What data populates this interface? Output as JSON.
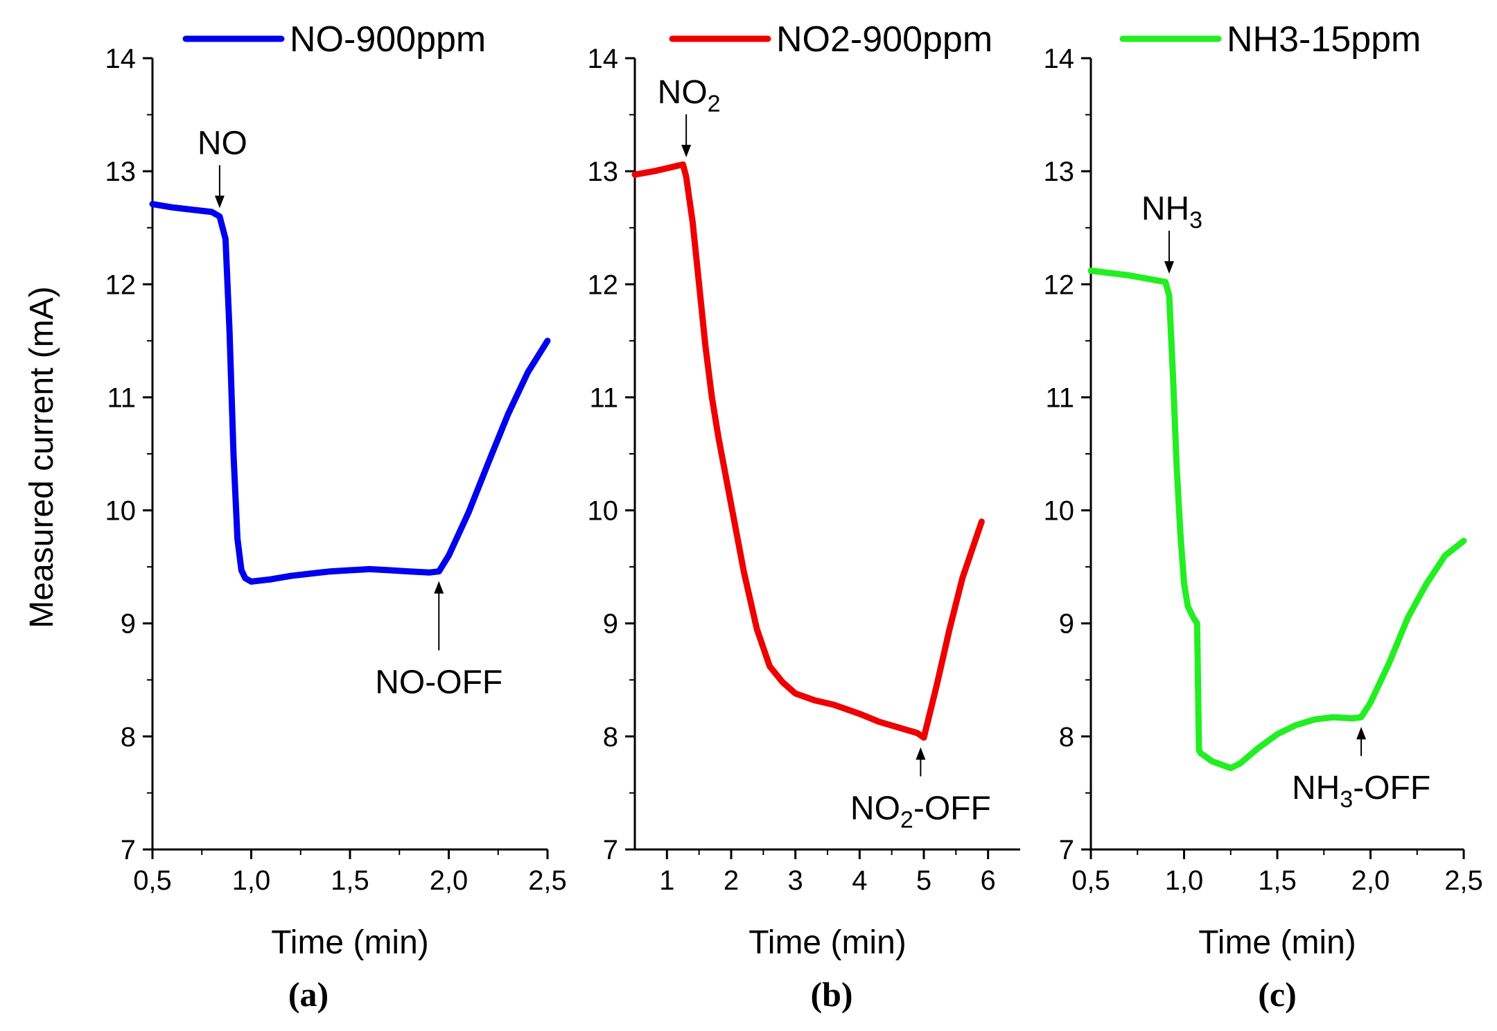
{
  "chart_data": [
    {
      "panel_label": "(a)",
      "type": "line",
      "xlabel": "Time (min)",
      "ylabel": "Measured current (mA)",
      "xlim": [
        0.5,
        2.5
      ],
      "ylim": [
        7,
        14
      ],
      "xticks": [
        0.5,
        1.0,
        1.5,
        2.0,
        2.5
      ],
      "xtick_labels": [
        "0,5",
        "1,0",
        "1,5",
        "2,0",
        "2,5"
      ],
      "yticks": [
        7,
        8,
        9,
        10,
        11,
        12,
        13,
        14
      ],
      "ytick_labels": [
        "7",
        "8",
        "9",
        "10",
        "11",
        "12",
        "13",
        "14"
      ],
      "legend": "top-center",
      "series": [
        {
          "name": "NO-900ppm",
          "color": "#0000ee",
          "x": [
            0.5,
            0.6,
            0.7,
            0.8,
            0.84,
            0.87,
            0.89,
            0.91,
            0.93,
            0.95,
            0.97,
            1.0,
            1.05,
            1.1,
            1.2,
            1.3,
            1.4,
            1.5,
            1.6,
            1.7,
            1.8,
            1.9,
            1.95,
            2.0,
            2.1,
            2.2,
            2.3,
            2.4,
            2.5
          ],
          "y": [
            12.71,
            12.68,
            12.66,
            12.64,
            12.6,
            12.4,
            11.6,
            10.5,
            9.75,
            9.47,
            9.4,
            9.37,
            9.38,
            9.39,
            9.42,
            9.44,
            9.46,
            9.47,
            9.48,
            9.47,
            9.46,
            9.45,
            9.46,
            9.6,
            9.98,
            10.42,
            10.85,
            11.22,
            11.5
          ]
        }
      ],
      "annotations": [
        {
          "text": "NO",
          "x": 0.84,
          "y": 12.6,
          "label_position": "above"
        },
        {
          "text": "NO-OFF",
          "x": 1.95,
          "y": 9.46,
          "label_position": "below"
        }
      ]
    },
    {
      "panel_label": "(b)",
      "type": "line",
      "xlabel": "Time (min)",
      "ylabel": "",
      "xlim": [
        0.5,
        6.5
      ],
      "ylim": [
        7,
        14
      ],
      "xticks": [
        1,
        2,
        3,
        4,
        5,
        6
      ],
      "xtick_labels": [
        "1",
        "2",
        "3",
        "4",
        "5",
        "6"
      ],
      "yticks": [
        7,
        8,
        9,
        10,
        11,
        12,
        13,
        14
      ],
      "ytick_labels": [
        "7",
        "8",
        "9",
        "10",
        "11",
        "12",
        "13",
        "14"
      ],
      "legend": "top-center",
      "series": [
        {
          "name": "NO2-900ppm",
          "color": "#ee0000",
          "x": [
            0.5,
            0.8,
            1.1,
            1.25,
            1.3,
            1.4,
            1.5,
            1.6,
            1.7,
            1.8,
            2.0,
            2.2,
            2.4,
            2.6,
            2.8,
            3.0,
            3.3,
            3.6,
            4.0,
            4.3,
            4.6,
            4.9,
            5.0,
            5.2,
            5.4,
            5.6,
            5.9
          ],
          "y": [
            12.97,
            13.0,
            13.04,
            13.06,
            12.95,
            12.55,
            12.0,
            11.45,
            11.0,
            10.65,
            10.05,
            9.45,
            8.95,
            8.62,
            8.48,
            8.38,
            8.32,
            8.28,
            8.2,
            8.13,
            8.08,
            8.03,
            7.99,
            8.45,
            8.95,
            9.4,
            9.9
          ]
        }
      ],
      "annotations": [
        {
          "text": "NO",
          "subscript": "2",
          "x": 1.3,
          "y": 13.05,
          "label_position": "above"
        },
        {
          "text": "NO",
          "subscript": "2",
          "suffix": "-OFF",
          "x": 4.95,
          "y": 7.99,
          "label_position": "below"
        }
      ]
    },
    {
      "panel_label": "(c)",
      "type": "line",
      "xlabel": "Time (min)",
      "ylabel": "",
      "xlim": [
        0.5,
        2.5
      ],
      "ylim": [
        7,
        14
      ],
      "xticks": [
        0.5,
        1.0,
        1.5,
        2.0,
        2.5
      ],
      "xtick_labels": [
        "0,5",
        "1,0",
        "1,5",
        "2,0",
        "2,5"
      ],
      "yticks": [
        7,
        8,
        9,
        10,
        11,
        12,
        13,
        14
      ],
      "ytick_labels": [
        "7",
        "8",
        "9",
        "10",
        "11",
        "12",
        "13",
        "14"
      ],
      "legend": "top-center",
      "series": [
        {
          "name": "NH3-15ppm",
          "color": "#22ee22",
          "x": [
            0.5,
            0.6,
            0.7,
            0.8,
            0.9,
            0.92,
            0.94,
            0.96,
            0.98,
            1.0,
            1.02,
            1.05,
            1.07,
            1.08,
            1.09,
            1.1,
            1.15,
            1.2,
            1.25,
            1.3,
            1.4,
            1.5,
            1.6,
            1.7,
            1.8,
            1.9,
            1.95,
            2.0,
            2.1,
            2.2,
            2.3,
            2.4,
            2.5
          ],
          "y": [
            12.12,
            12.1,
            12.08,
            12.05,
            12.02,
            11.9,
            11.2,
            10.4,
            9.8,
            9.35,
            9.15,
            9.05,
            9.0,
            7.88,
            7.85,
            7.84,
            7.78,
            7.75,
            7.72,
            7.76,
            7.9,
            8.02,
            8.1,
            8.15,
            8.17,
            8.16,
            8.17,
            8.3,
            8.65,
            9.05,
            9.35,
            9.6,
            9.73
          ]
        }
      ],
      "annotations": [
        {
          "text": "NH",
          "subscript": "3",
          "x": 0.92,
          "y": 12.02,
          "label_position": "above"
        },
        {
          "text": "NH",
          "subscript": "3",
          "suffix": "-OFF",
          "x": 1.95,
          "y": 8.17,
          "label_position": "below"
        }
      ]
    }
  ]
}
